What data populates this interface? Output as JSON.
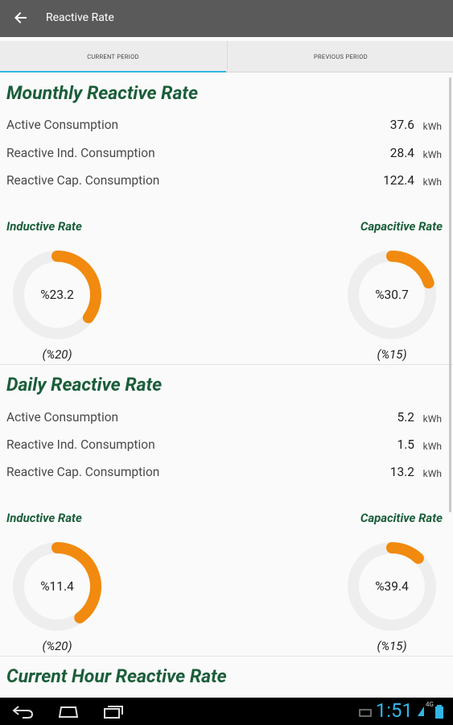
{
  "header": {
    "title": "Reactive Rate"
  },
  "tabs": [
    {
      "label": "CURRENT PERIOD",
      "active": true
    },
    {
      "label": "PREVIOUS PERIOD",
      "active": false
    }
  ],
  "sections": [
    {
      "title": "Mounthly Reactive Rate",
      "rows": [
        {
          "label": "Active Consumption",
          "value": "37.6",
          "unit": "kWh"
        },
        {
          "label": "Reactive Ind. Consumption",
          "value": "28.4",
          "unit": "kWh"
        },
        {
          "label": "Reactive Cap. Consumption",
          "value": "122.4",
          "unit": "kWh"
        }
      ],
      "inductive": {
        "label": "Inductive Rate",
        "percent_text": "%23.2",
        "threshold": "(%20)",
        "fill_fraction": 0.35
      },
      "capacitive": {
        "label": "Capacitive Rate",
        "percent_text": "%30.7",
        "threshold": "(%15)",
        "fill_fraction": 0.2
      }
    },
    {
      "title": "Daily Reactive Rate",
      "rows": [
        {
          "label": "Active Consumption",
          "value": "5.2",
          "unit": "kWh"
        },
        {
          "label": "Reactive Ind. Consumption",
          "value": "1.5",
          "unit": "kWh"
        },
        {
          "label": "Reactive Cap. Consumption",
          "value": "13.2",
          "unit": "kWh"
        }
      ],
      "inductive": {
        "label": "Inductive Rate",
        "percent_text": "%11.4",
        "threshold": "(%20)",
        "fill_fraction": 0.4
      },
      "capacitive": {
        "label": "Capacitive Rate",
        "percent_text": "%39.4",
        "threshold": "(%15)",
        "fill_fraction": 0.12
      }
    },
    {
      "title": "Current Hour Reactive Rate"
    }
  ],
  "colors": {
    "accent": "#33b5e5",
    "gauge_fill": "#f18a0e",
    "gauge_track": "#eeeeee",
    "title_green": "#1b5e3a",
    "topbar": "#5a5a5a"
  },
  "statusbar": {
    "time": "1:51",
    "signal_text": "4G"
  },
  "icons": {
    "back": "arrow-left-icon",
    "nav_back": "nav-back-icon",
    "nav_home": "nav-home-icon",
    "nav_recents": "nav-recents-icon"
  }
}
